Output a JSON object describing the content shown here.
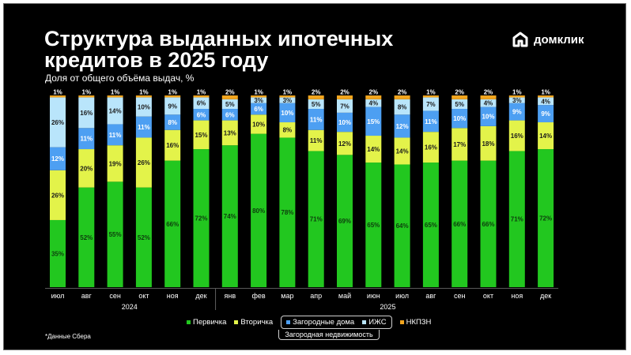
{
  "header": {
    "title": "Структура выданных ипотечных кредитов в 2025 году",
    "subtitle": "Доля от общего объёма выдач, %",
    "logo_text": "домклик"
  },
  "footer": {
    "source": "*Данные Сбера",
    "group_label": "Загородная недвижимость"
  },
  "colors": {
    "pervichka": "#22c71f",
    "vtorichka": "#e3f34a",
    "zagorod": "#4d9ff2",
    "izhs": "#b9e5fb",
    "nkpzn": "#f2a51e",
    "background": "#000000"
  },
  "chart_data": {
    "type": "bar",
    "stacked": true,
    "categories": [
      "июл",
      "авг",
      "сен",
      "окт",
      "ноя",
      "дек",
      "янв",
      "фев",
      "мар",
      "апр",
      "май",
      "июн",
      "июл",
      "авг",
      "сен",
      "окт",
      "ноя",
      "дек"
    ],
    "year_groups": [
      {
        "label": "2024",
        "start": 0,
        "end": 5
      },
      {
        "label": "2025",
        "start": 6,
        "end": 17
      }
    ],
    "ylim": [
      0,
      100
    ],
    "series": [
      {
        "name": "Первичка",
        "key": "pervichka",
        "values": [
          35,
          52,
          55,
          52,
          66,
          72,
          74,
          80,
          78,
          71,
          69,
          65,
          64,
          65,
          66,
          66,
          71,
          72
        ]
      },
      {
        "name": "Вторичка",
        "key": "vtorichka",
        "values": [
          26,
          20,
          19,
          26,
          16,
          15,
          13,
          10,
          8,
          11,
          12,
          14,
          14,
          16,
          17,
          18,
          16,
          14
        ]
      },
      {
        "name": "Загородные дома",
        "key": "zagorod",
        "values": [
          12,
          11,
          11,
          11,
          8,
          6,
          6,
          6,
          10,
          11,
          10,
          15,
          12,
          11,
          10,
          10,
          9,
          9
        ]
      },
      {
        "name": "ИЖС",
        "key": "izhs",
        "values": [
          26,
          16,
          14,
          10,
          9,
          6,
          5,
          3,
          3,
          5,
          7,
          4,
          8,
          7,
          5,
          4,
          3,
          4
        ]
      },
      {
        "name": "НКПЗН",
        "key": "nkpzn",
        "values": [
          1,
          1,
          1,
          1,
          1,
          1,
          2,
          1,
          1,
          2,
          2,
          2,
          2,
          1,
          2,
          2,
          1,
          1
        ]
      }
    ]
  }
}
